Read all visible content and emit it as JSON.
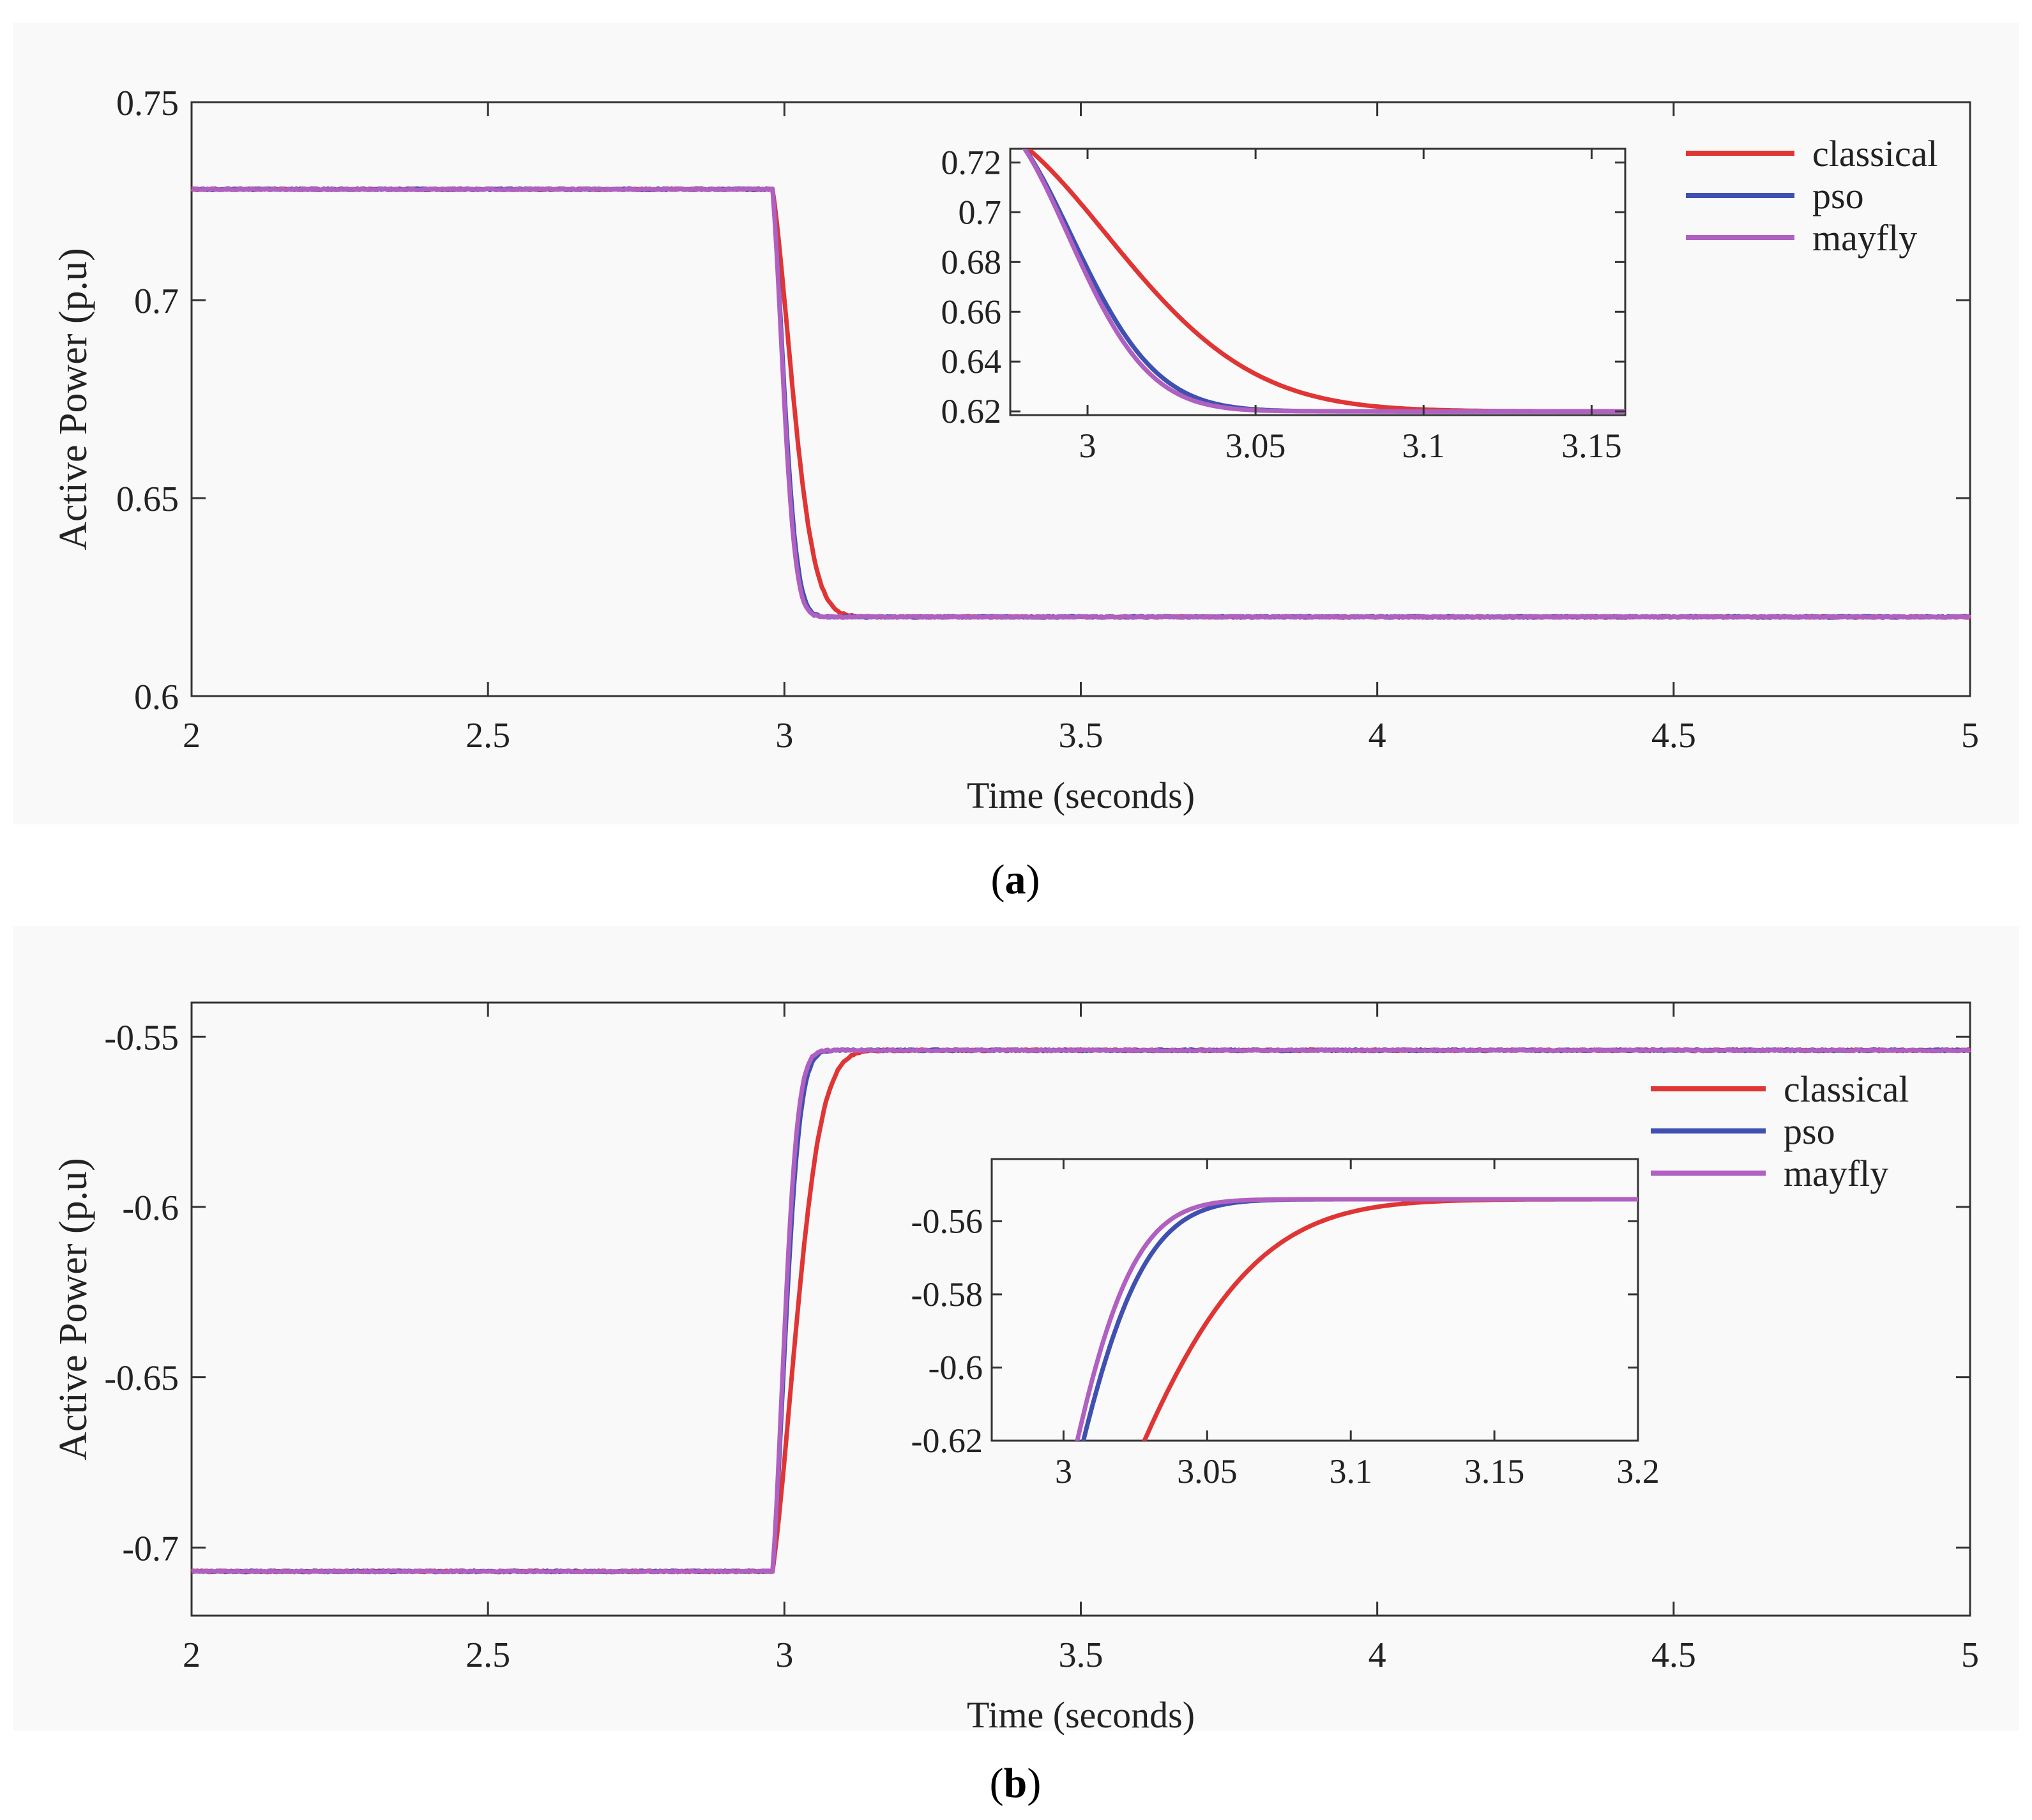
{
  "colors": {
    "classical": "#e03535",
    "pso": "#4050b0",
    "mayfly": "#b060c0"
  },
  "captions": {
    "a": "a",
    "b": "b"
  },
  "chart_data": [
    {
      "id": "a",
      "type": "line",
      "title": "",
      "xlabel": "Time (seconds)",
      "ylabel": "Active Power (p.u)",
      "xlim": [
        2,
        5
      ],
      "ylim": [
        0.6,
        0.75
      ],
      "xticks": [
        2,
        2.5,
        3,
        3.5,
        4,
        4.5,
        5
      ],
      "xtick_labels": [
        "2",
        "2.5",
        "3",
        "3.5",
        "4",
        "4.5",
        "5"
      ],
      "yticks": [
        0.6,
        0.65,
        0.7,
        0.75
      ],
      "ytick_labels": [
        "0.6",
        "0.65",
        "0.7",
        "0.75"
      ],
      "legend": [
        "classical",
        "pso",
        "mayfly"
      ],
      "legend_position": "top-right",
      "step": {
        "t0": 2.98,
        "initial": 0.728,
        "final": 0.62
      },
      "series": [
        {
          "name": "classical",
          "tau": 0.058
        },
        {
          "name": "pso",
          "tau": 0.034
        },
        {
          "name": "mayfly",
          "tau": 0.032
        }
      ],
      "inset": {
        "xlim": [
          2.977,
          3.16
        ],
        "ylim": [
          0.6185,
          0.7255
        ],
        "xticks": [
          3,
          3.05,
          3.1,
          3.15
        ],
        "xtick_labels": [
          "3",
          "3.05",
          "3.1",
          "3.15"
        ],
        "yticks": [
          0.62,
          0.64,
          0.66,
          0.68,
          0.7,
          0.72
        ],
        "ytick_labels": [
          "0.62",
          "0.64",
          "0.66",
          "0.68",
          "0.7",
          "0.72"
        ]
      }
    },
    {
      "id": "b",
      "type": "line",
      "title": "",
      "xlabel": "Time (seconds)",
      "ylabel": "Active Power (p.u)",
      "xlim": [
        2,
        5
      ],
      "ylim": [
        -0.72,
        -0.54
      ],
      "xticks": [
        2,
        2.5,
        3,
        3.5,
        4,
        4.5,
        5
      ],
      "xtick_labels": [
        "2",
        "2.5",
        "3",
        "3.5",
        "4",
        "4.5",
        "5"
      ],
      "yticks": [
        -0.7,
        -0.65,
        -0.6,
        -0.55
      ],
      "ytick_labels": [
        "-0.7",
        "-0.65",
        "-0.6",
        "-0.55"
      ],
      "legend": [
        "classical",
        "pso",
        "mayfly"
      ],
      "legend_position": "top-right",
      "step": {
        "t0": 2.98,
        "initial": -0.707,
        "final": -0.554
      },
      "series": [
        {
          "name": "classical",
          "tau": 0.068
        },
        {
          "name": "pso",
          "tau": 0.038
        },
        {
          "name": "mayfly",
          "tau": 0.035
        }
      ],
      "inset": {
        "xlim": [
          2.975,
          3.2
        ],
        "ylim": [
          -0.62,
          -0.543
        ],
        "xticks": [
          3,
          3.05,
          3.1,
          3.15,
          3.2
        ],
        "xtick_labels": [
          "3",
          "3.05",
          "3.1",
          "3.15",
          "3.2"
        ],
        "yticks": [
          -0.62,
          -0.6,
          -0.58,
          -0.56
        ],
        "ytick_labels": [
          "-0.62",
          "-0.6",
          "-0.58",
          "-0.56"
        ]
      }
    }
  ]
}
